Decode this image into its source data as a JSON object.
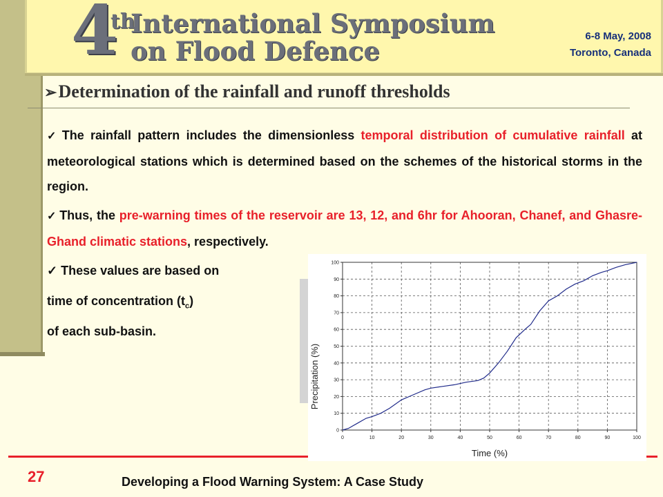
{
  "banner": {
    "ordinal_number": "4",
    "ordinal_suffix": "th",
    "title_line1": "International Symposium",
    "title_line2": "on Flood Defence",
    "date": "6-8 May, 2008",
    "place": "Toronto, Canada"
  },
  "slide": {
    "heading": "Determination of the rainfall and runoff thresholds",
    "para1": {
      "t1": "The rainfall pattern includes the dimensionless ",
      "h1": "temporal distribution of cumulative rainfall",
      "t2": " at meteorological stations which is determined based on the schemes of the historical storms in the region."
    },
    "para2": {
      "t1": "Thus, the ",
      "h1": "pre-warning times of the reservoir are 13, 12, and 6hr for Ahooran, Chanef, and Ghasre-Ghand climatic stations",
      "t2": ", respectively."
    },
    "short1": "These values are based on",
    "short2_before": "time of concentration (t",
    "short2_sub": "c",
    "short2_after": ")",
    "short3": "of each sub-basin."
  },
  "chart_data": {
    "type": "line",
    "xlabel": "Time (%)",
    "ylabel": "Precipitation (%)",
    "xlim": [
      0,
      100
    ],
    "ylim": [
      0,
      100
    ],
    "xticks": [
      "0",
      "10",
      "20",
      "30",
      "40",
      "50",
      "60",
      "70",
      "80",
      "90",
      "100"
    ],
    "yticks": [
      "0",
      "10",
      "20",
      "30",
      "40",
      "50",
      "60",
      "70",
      "80",
      "90",
      "100"
    ],
    "grid": true,
    "series": [
      {
        "color": "#1f2a8a",
        "x": [
          0,
          2,
          5,
          8,
          10,
          13,
          16,
          20,
          24,
          28,
          30,
          34,
          38,
          42,
          46,
          48,
          50,
          53,
          56,
          59,
          62,
          64,
          67,
          70,
          73,
          76,
          79,
          82,
          85,
          88,
          90,
          93,
          96,
          100
        ],
        "y": [
          0,
          1,
          4,
          7,
          8,
          10,
          13,
          18,
          21,
          24,
          25,
          26,
          27,
          28.5,
          29.5,
          31,
          34,
          40,
          47,
          55,
          60,
          63,
          71,
          77,
          80,
          84,
          87,
          89,
          92,
          94,
          95,
          97,
          98.5,
          100
        ]
      }
    ]
  },
  "footer": {
    "page_number": "27",
    "title": "Developing a Flood Warning System: A Case Study"
  }
}
